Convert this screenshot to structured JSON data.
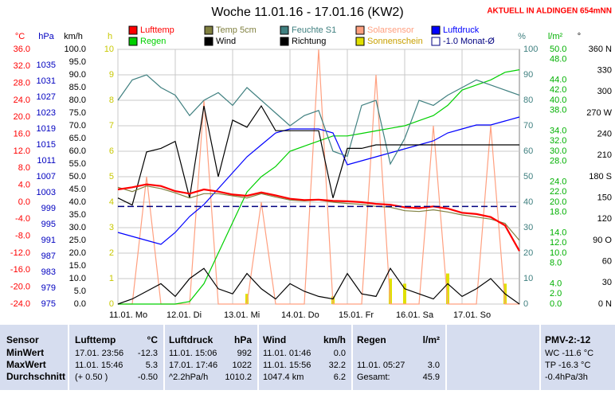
{
  "chart_data": {
    "type": "line",
    "title": "Woche 11.01.16 - 17.01.16 (KW2)",
    "station": "AKTUELL IN ALDINGEN 654mNN",
    "x": [
      0,
      6,
      12,
      18,
      24,
      30,
      36,
      42,
      48,
      54,
      60,
      66,
      72,
      78,
      84,
      90,
      96,
      102,
      108,
      114,
      120,
      126,
      132,
      138,
      144,
      150,
      156,
      162,
      168
    ],
    "xlim": [
      0,
      168
    ],
    "xticks": [
      {
        "value": 0,
        "label": "11.01. Mo"
      },
      {
        "value": 24,
        "label": "12.01. Di"
      },
      {
        "value": 48,
        "label": "13.01. Mi"
      },
      {
        "value": 72,
        "label": "14.01. Do"
      },
      {
        "value": 96,
        "label": "15.01. Fr"
      },
      {
        "value": 120,
        "label": "16.01. Sa"
      },
      {
        "value": 144,
        "label": "17.01. So"
      }
    ],
    "grid": true,
    "y_axes": [
      {
        "label": "°C",
        "color": "#ff0000",
        "side": "left",
        "ylim": [
          -24,
          36
        ],
        "yticks": [
          {
            "value": 36,
            "label": "36.0"
          },
          {
            "value": 32,
            "label": "32.0"
          },
          {
            "value": 28,
            "label": "28.0"
          },
          {
            "value": 24,
            "label": "24.0"
          },
          {
            "value": 20,
            "label": "20.0"
          },
          {
            "value": 16,
            "label": "16.0"
          },
          {
            "value": 12,
            "label": "12.0"
          },
          {
            "value": 8,
            "label": "8.0"
          },
          {
            "value": 4,
            "label": "4.0"
          },
          {
            "value": 0,
            "label": "0.0"
          },
          {
            "value": -4,
            "label": "-4.0"
          },
          {
            "value": -8,
            "label": "-8.0"
          },
          {
            "value": -12,
            "label": "-12.0"
          },
          {
            "value": -16,
            "label": "-16.0"
          },
          {
            "value": -20,
            "label": "-20.0"
          },
          {
            "value": -24,
            "label": "-24.0"
          }
        ]
      },
      {
        "label": "hPa",
        "color": "#0000c0",
        "side": "left",
        "ylim": [
          975,
          1039
        ],
        "yticks": [
          1035,
          1031,
          1027,
          1023,
          1019,
          1015,
          1011,
          1007,
          1003,
          999,
          995,
          991,
          987,
          983,
          979,
          975
        ]
      },
      {
        "label": "km/h",
        "color": "#000000",
        "side": "left",
        "ylim": [
          0,
          100
        ],
        "yticks": [
          {
            "value": 100,
            "label": "100.0"
          },
          {
            "value": 95,
            "label": "95.0"
          },
          {
            "value": 90,
            "label": "90.0"
          },
          {
            "value": 85,
            "label": "85.0"
          },
          {
            "value": 80,
            "label": "80.0"
          },
          {
            "value": 75,
            "label": "75.0"
          },
          {
            "value": 70,
            "label": "70.0"
          },
          {
            "value": 65,
            "label": "65.0"
          },
          {
            "value": 60,
            "label": "60.0"
          },
          {
            "value": 55,
            "label": "55.0"
          },
          {
            "value": 50,
            "label": "50.0"
          },
          {
            "value": 45,
            "label": "45.0"
          },
          {
            "value": 40,
            "label": "40.0"
          },
          {
            "value": 35,
            "label": "35.0"
          },
          {
            "value": 30,
            "label": "30.0"
          },
          {
            "value": 25,
            "label": "25.0"
          },
          {
            "value": 20,
            "label": "20.0"
          },
          {
            "value": 15,
            "label": "15.0"
          },
          {
            "value": 10,
            "label": "10.0"
          },
          {
            "value": 5,
            "label": "5.0"
          },
          {
            "value": 0,
            "label": "0.0"
          }
        ]
      },
      {
        "label": "h",
        "color": "#c8c800",
        "side": "inner",
        "ylim": [
          0,
          10
        ],
        "yticks": [
          10,
          9,
          8,
          7,
          6,
          5,
          4,
          3,
          2,
          1,
          0
        ]
      },
      {
        "label": "%",
        "color": "#408080",
        "side": "right",
        "ylim": [
          0,
          100
        ],
        "yticks": [
          100,
          90,
          80,
          70,
          60,
          50,
          40,
          30,
          20,
          10,
          0
        ]
      },
      {
        "label": "l/m²",
        "color": "#00b000",
        "side": "right2",
        "ylim": [
          0,
          50
        ],
        "yticks": [
          {
            "value": 50,
            "label": "50.0"
          },
          {
            "value": 48,
            "label": "48.0"
          },
          {
            "value": 44,
            "label": "44.0"
          },
          {
            "value": 42,
            "label": "42.0"
          },
          {
            "value": 40,
            "label": "40.0"
          },
          {
            "value": 38,
            "label": "38.0"
          },
          {
            "value": 34,
            "label": "34.0"
          },
          {
            "value": 32,
            "label": "32.0"
          },
          {
            "value": 30,
            "label": "30.0"
          },
          {
            "value": 28,
            "label": "28.0"
          },
          {
            "value": 24,
            "label": "24.0"
          },
          {
            "value": 22,
            "label": "22.0"
          },
          {
            "value": 20,
            "label": "20.0"
          },
          {
            "value": 18,
            "label": "18.0"
          },
          {
            "value": 14,
            "label": "14.0"
          },
          {
            "value": 12,
            "label": "12.0"
          },
          {
            "value": 10,
            "label": "10.0"
          },
          {
            "value": 8,
            "label": "8.0"
          },
          {
            "value": 4,
            "label": "4.0"
          },
          {
            "value": 2,
            "label": "2.0"
          },
          {
            "value": 0,
            "label": "0.0"
          }
        ]
      },
      {
        "label": "°",
        "color": "#000000",
        "side": "right3",
        "ylim": [
          0,
          360
        ],
        "yticks": [
          {
            "value": 360,
            "label": "360 N"
          },
          {
            "value": 330,
            "label": "330"
          },
          {
            "value": 300,
            "label": "300"
          },
          {
            "value": 270,
            "label": "270 W"
          },
          {
            "value": 240,
            "label": "240"
          },
          {
            "value": 210,
            "label": "210"
          },
          {
            "value": 180,
            "label": "180 S"
          },
          {
            "value": 150,
            "label": "150"
          },
          {
            "value": 120,
            "label": "120"
          },
          {
            "value": 90,
            "label": "90 O"
          },
          {
            "value": 60,
            "label": "60"
          },
          {
            "value": 30,
            "label": "30"
          },
          {
            "value": 0,
            "label": "0 N"
          }
        ]
      }
    ],
    "series": [
      {
        "name": "Lufttemp",
        "color": "#ff0000",
        "axis": 0,
        "style": "line",
        "values": [
          3.0,
          3.5,
          4.2,
          3.8,
          2.6,
          2.0,
          3.0,
          2.5,
          1.8,
          1.5,
          2.3,
          1.6,
          0.8,
          0.5,
          0.6,
          0.3,
          0.2,
          0.0,
          -0.4,
          -0.6,
          -1.2,
          -1.4,
          -1.0,
          -1.5,
          -2.5,
          -2.8,
          -3.5,
          -5.5,
          -11.5
        ]
      },
      {
        "name": "Temp 5cm",
        "color": "#808040",
        "axis": 0,
        "style": "line",
        "values": [
          3.5,
          2.5,
          3.8,
          3.2,
          2.2,
          1.0,
          2.0,
          2.0,
          1.5,
          1.0,
          2.0,
          1.2,
          0.5,
          0.3,
          0.5,
          0.0,
          -0.3,
          -0.5,
          -1.0,
          -1.2,
          -2.0,
          -2.2,
          -1.8,
          -2.3,
          -3.0,
          -3.5,
          -4.0,
          -5.0,
          -9.0
        ]
      },
      {
        "name": "Feuchte S1",
        "color": "#408080",
        "axis": 4,
        "style": "line",
        "values": [
          80,
          88,
          90,
          85,
          82,
          74,
          80,
          83,
          78,
          85,
          80,
          75,
          70,
          74,
          76,
          60,
          58,
          78,
          80,
          55,
          65,
          80,
          78,
          82,
          85,
          88,
          86,
          84,
          82
        ]
      },
      {
        "name": "Solarsensor",
        "color": "#ffa080",
        "axis": 3,
        "style": "line",
        "values": [
          0,
          0,
          5,
          0,
          0,
          0,
          8,
          0,
          0,
          0,
          4,
          0,
          0,
          0,
          10,
          0,
          0,
          0,
          9,
          0,
          0,
          0,
          7,
          0,
          0,
          0,
          7,
          0,
          0
        ]
      },
      {
        "name": "Luftdruck",
        "color": "#0000ff",
        "axis": 1,
        "style": "line",
        "values": [
          993,
          992,
          991,
          990,
          993,
          997,
          1000,
          1004,
          1008,
          1012,
          1015,
          1018,
          1019,
          1019,
          1019,
          1018,
          1010,
          1011,
          1012,
          1013,
          1014,
          1015,
          1016,
          1018,
          1019,
          1020,
          1020,
          1021,
          1022
        ]
      },
      {
        "name": "Regen",
        "color": "#00d000",
        "axis": 5,
        "style": "line",
        "values": [
          0,
          0,
          0,
          0,
          0,
          0.5,
          4,
          10,
          16,
          22,
          25,
          27,
          30,
          31,
          32,
          33,
          33,
          33.5,
          34,
          34.5,
          35,
          36,
          37,
          39,
          42,
          43,
          44,
          45.5,
          46
        ]
      },
      {
        "name": "Wind",
        "color": "#000000",
        "axis": 2,
        "style": "line",
        "values": [
          0,
          2,
          5,
          8,
          3,
          10,
          14,
          6,
          4,
          12,
          6,
          2,
          8,
          5,
          3,
          2,
          12,
          4,
          3,
          14,
          6,
          4,
          2,
          8,
          3,
          6,
          10,
          4,
          0
        ]
      },
      {
        "name": "Richtung",
        "color": "#000000",
        "axis": 6,
        "style": "line",
        "values": [
          150,
          140,
          215,
          220,
          230,
          150,
          280,
          180,
          260,
          250,
          280,
          245,
          245,
          245,
          245,
          150,
          220,
          220,
          225,
          225,
          225,
          225,
          225,
          225,
          225,
          225,
          225,
          225,
          225
        ]
      },
      {
        "name": "Sonnenschein",
        "color": "#e0e000",
        "axis": 3,
        "style": "bar",
        "values": [
          0,
          0,
          0,
          0,
          0,
          0,
          0,
          0,
          0,
          0.4,
          0,
          0,
          0,
          0,
          0,
          0.3,
          0,
          0,
          0,
          1,
          0.8,
          0,
          0,
          1.2,
          0,
          0,
          0,
          0.8,
          0
        ]
      },
      {
        "name": "-1.0 Monat-Ø",
        "color": "#000080",
        "axis": 0,
        "style": "level",
        "level": -1.0
      }
    ]
  },
  "table": {
    "header": [
      "Sensor",
      "Lufttemp",
      "°C",
      "Luftdruck",
      "hPa",
      "Wind",
      "km/h",
      "Regen",
      "l/m²",
      "PMV-2:-12"
    ],
    "rows": [
      [
        "MinWert",
        "17.01.  23:56",
        "-12.3",
        "11.01.  15:06",
        "992",
        "11.01.  01:46",
        "0.0",
        null,
        null,
        "WC -11.6 °C"
      ],
      [
        "MaxWert",
        "11.01.  15:46",
        "5.3",
        "17.01.  17:46",
        "1022",
        "11.01.  15:56",
        "32.2",
        "11.01.  05:27",
        "3.0",
        "TP -16.3 °C"
      ],
      [
        "Durchschnitt",
        "(+ 0.50 )",
        "-0.50",
        "^2.2hPa/h",
        "1010.2",
        "1047.4 km",
        "6.2",
        "Gesamt:",
        "45.9",
        "-0.4hPa/3h"
      ]
    ]
  }
}
